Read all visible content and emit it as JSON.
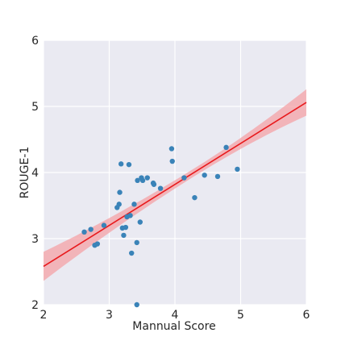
{
  "chart_data": {
    "type": "scatter",
    "title": "",
    "xlabel": "Mannual Score",
    "ylabel": "ROUGE-1",
    "xlim": [
      2,
      6
    ],
    "ylim": [
      2,
      6
    ],
    "xticks": [
      "2",
      "3",
      "4",
      "5",
      "6"
    ],
    "yticks": [
      "2",
      "3",
      "4",
      "5",
      "6"
    ],
    "grid": true,
    "background_color": "#eaeaf2",
    "point_color": "#3a83b8",
    "line_color": "#e8191c",
    "band_color": "#f4a2a6",
    "regression": {
      "slope": 0.62,
      "intercept": 1.34,
      "ci_at_x2": 0.22,
      "ci_at_x6": 0.2,
      "ci_at_center": 0.06
    },
    "points": [
      {
        "x": 2.62,
        "y": 3.1
      },
      {
        "x": 2.72,
        "y": 3.14
      },
      {
        "x": 2.78,
        "y": 2.9
      },
      {
        "x": 2.82,
        "y": 2.92
      },
      {
        "x": 2.92,
        "y": 3.2
      },
      {
        "x": 3.12,
        "y": 3.47
      },
      {
        "x": 3.15,
        "y": 3.52
      },
      {
        "x": 3.16,
        "y": 3.7
      },
      {
        "x": 3.18,
        "y": 4.13
      },
      {
        "x": 3.2,
        "y": 3.16
      },
      {
        "x": 3.22,
        "y": 3.05
      },
      {
        "x": 3.25,
        "y": 3.17
      },
      {
        "x": 3.27,
        "y": 3.33
      },
      {
        "x": 3.3,
        "y": 4.12
      },
      {
        "x": 3.32,
        "y": 3.35
      },
      {
        "x": 3.34,
        "y": 2.78
      },
      {
        "x": 3.38,
        "y": 3.52
      },
      {
        "x": 3.42,
        "y": 2.94
      },
      {
        "x": 3.43,
        "y": 3.88
      },
      {
        "x": 3.47,
        "y": 3.25
      },
      {
        "x": 3.49,
        "y": 3.92
      },
      {
        "x": 3.51,
        "y": 3.88
      },
      {
        "x": 3.58,
        "y": 3.92
      },
      {
        "x": 3.67,
        "y": 3.84
      },
      {
        "x": 3.68,
        "y": 3.82
      },
      {
        "x": 3.78,
        "y": 3.76
      },
      {
        "x": 3.42,
        "y": 2.0
      },
      {
        "x": 3.95,
        "y": 4.36
      },
      {
        "x": 3.96,
        "y": 4.17
      },
      {
        "x": 4.14,
        "y": 3.92
      },
      {
        "x": 4.3,
        "y": 3.62
      },
      {
        "x": 4.45,
        "y": 3.96
      },
      {
        "x": 4.65,
        "y": 3.94
      },
      {
        "x": 4.78,
        "y": 4.38
      },
      {
        "x": 4.95,
        "y": 4.05
      }
    ]
  }
}
